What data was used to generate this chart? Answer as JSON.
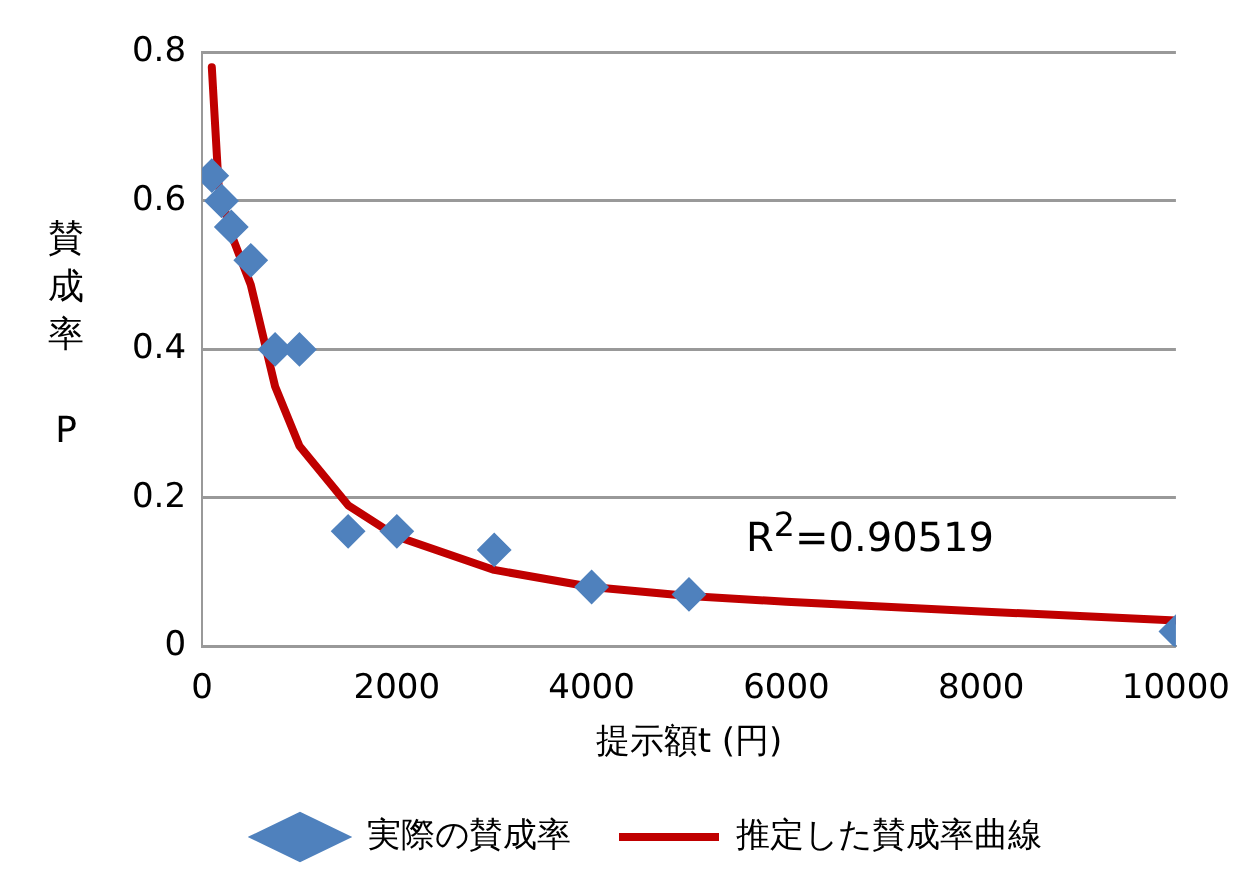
{
  "chart_data": {
    "type": "scatter",
    "xlabel": "提示額t (円)",
    "ylabel": "賛成率 P",
    "annotations": [
      "R$^{2}$=0.90519"
    ],
    "xlim": [
      0,
      10000
    ],
    "xticks": [
      0,
      2000,
      4000,
      6000,
      8000,
      10000
    ],
    "ylim": [
      0,
      0.8
    ],
    "yticks": [
      0,
      0.2,
      0.4,
      0.6,
      0.8
    ],
    "grid": "y",
    "legend": "bottom",
    "series": [
      {
        "name": "実際の賛成率",
        "marker": "diamond",
        "color": "#4f81bd",
        "x": [
          100,
          200,
          300,
          500,
          750,
          1000,
          1500,
          2000,
          3000,
          4000,
          5000,
          10000
        ],
        "values": [
          0.634,
          0.6,
          0.565,
          0.52,
          0.4,
          0.4,
          0.155,
          0.155,
          0.13,
          0.08,
          0.07,
          0.02
        ]
      },
      {
        "name": "推定した賛成率曲線",
        "type": "line",
        "marker": "none",
        "color": "#c00000",
        "x": [
          100,
          170,
          300,
          500,
          750,
          1000,
          1500,
          2000,
          3000,
          4000,
          5000,
          6000,
          8000,
          10000
        ],
        "values": [
          0.78,
          0.62,
          0.555,
          0.487,
          0.35,
          0.27,
          0.19,
          0.148,
          0.103,
          0.08,
          0.068,
          0.06,
          0.047,
          0.035
        ]
      }
    ]
  }
}
